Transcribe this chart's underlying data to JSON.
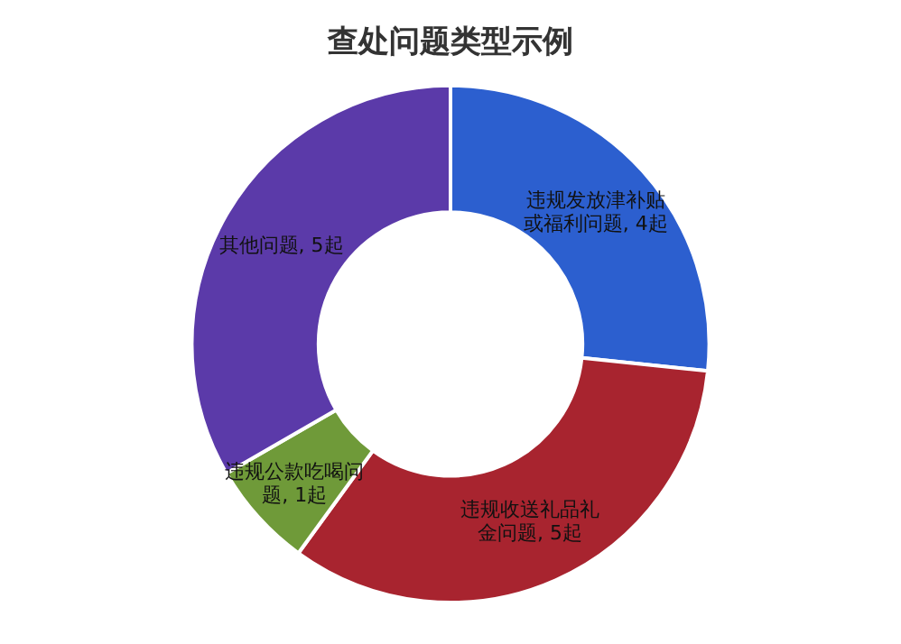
{
  "chart_data": {
    "type": "donut",
    "title": "查处问题类型示例",
    "categories": [
      "违规发放津补贴或福利问题",
      "违规收送礼品礼金问题",
      "违规公款吃喝问题",
      "其他问题"
    ],
    "values": [
      4,
      5,
      1,
      5
    ],
    "value_labels": [
      "4起",
      "5起",
      "1起",
      "5起"
    ],
    "colors": [
      "#2c5fcf",
      "#a8242f",
      "#6f9a39",
      "#5b3aa9"
    ],
    "legend": false
  }
}
